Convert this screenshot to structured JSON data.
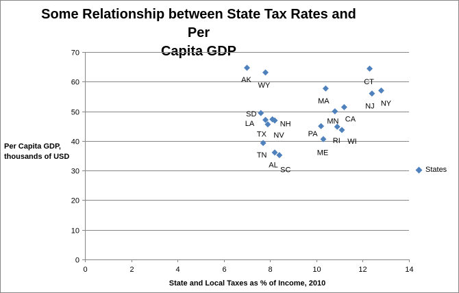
{
  "chart_data": {
    "type": "scatter",
    "title": "Some Relationship between State Tax Rates and Per Capita GDP",
    "title_lines": [
      "Some Relationship between State Tax Rates and Per",
      "Capita GDP"
    ],
    "xlabel": "State and Local Taxes as % of Income, 2010",
    "ylabel_lines": [
      "Per Capita GDP,",
      "thousands of USD"
    ],
    "xlim": [
      0,
      14
    ],
    "ylim": [
      0,
      70
    ],
    "xticks": [
      0,
      2,
      4,
      6,
      8,
      10,
      12,
      14
    ],
    "yticks": [
      0,
      10,
      20,
      30,
      40,
      50,
      60,
      70
    ],
    "grid": "horizontal major",
    "legend_position": "right",
    "marker": "diamond",
    "color": "#4F81BD",
    "series": [
      {
        "name": "States",
        "points": [
          {
            "label": "AK",
            "x": 7.0,
            "y": 64.7
          },
          {
            "label": "WY",
            "x": 7.8,
            "y": 63.1
          },
          {
            "label": "SD",
            "x": 7.6,
            "y": 49.4
          },
          {
            "label": "LA",
            "x": 7.8,
            "y": 47.1
          },
          {
            "label": "TX",
            "x": 7.9,
            "y": 45.6
          },
          {
            "label": "NH",
            "x": 8.1,
            "y": 47.3
          },
          {
            "label": "NV",
            "x": 8.2,
            "y": 46.9
          },
          {
            "label": "TN",
            "x": 7.7,
            "y": 39.3
          },
          {
            "label": "AL",
            "x": 8.2,
            "y": 36.1
          },
          {
            "label": "SC",
            "x": 8.4,
            "y": 35.2
          },
          {
            "label": "CT",
            "x": 12.3,
            "y": 64.4
          },
          {
            "label": "MA",
            "x": 10.4,
            "y": 57.7
          },
          {
            "label": "NJ",
            "x": 12.4,
            "y": 56.0
          },
          {
            "label": "NY",
            "x": 12.8,
            "y": 57.0
          },
          {
            "label": "CA",
            "x": 11.2,
            "y": 51.4
          },
          {
            "label": "MN",
            "x": 10.8,
            "y": 50.0
          },
          {
            "label": "PA",
            "x": 10.2,
            "y": 45.0
          },
          {
            "label": "RI",
            "x": 10.9,
            "y": 44.8
          },
          {
            "label": "WI",
            "x": 11.1,
            "y": 43.7
          },
          {
            "label": "ME",
            "x": 10.3,
            "y": 40.6
          }
        ]
      }
    ]
  }
}
